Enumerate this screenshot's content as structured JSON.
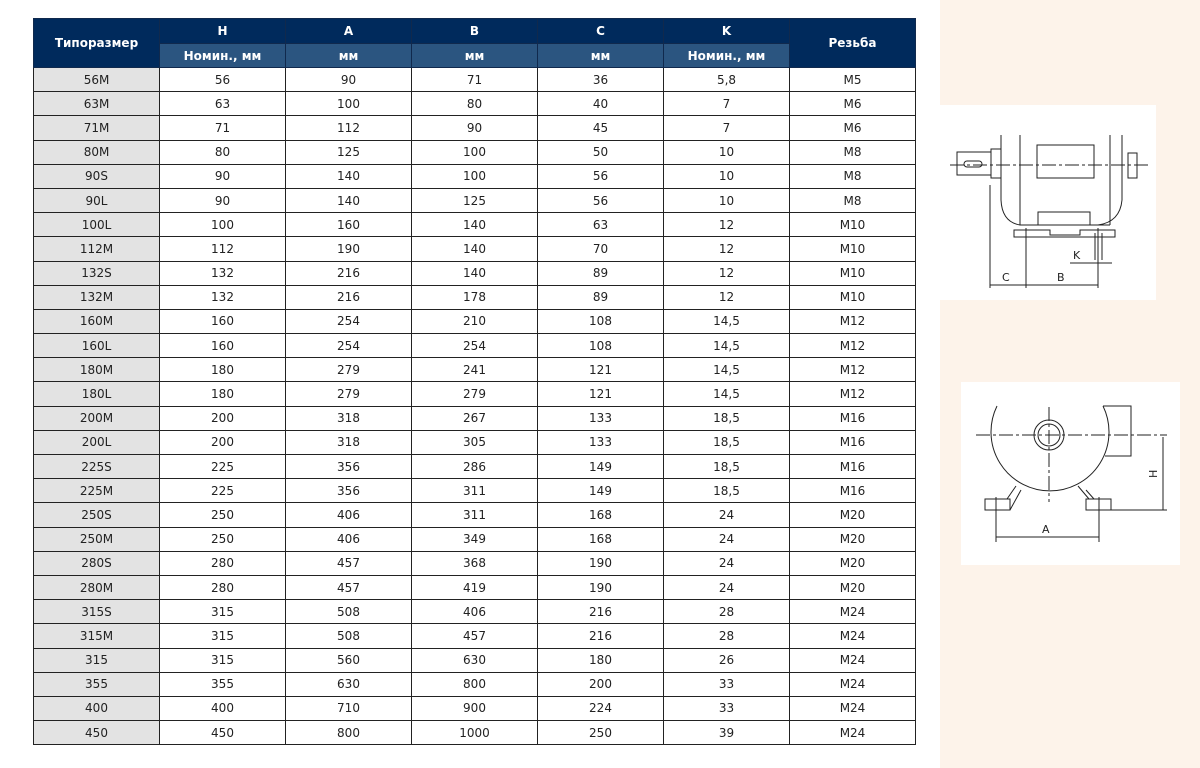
{
  "table": {
    "headers": {
      "size": "Типоразмер",
      "H": "H",
      "A": "A",
      "B": "B",
      "C": "C",
      "K": "K",
      "thread": "Резьба"
    },
    "subheaders": {
      "H": "Номин., мм",
      "A": "мм",
      "B": "мм",
      "C": "мм",
      "K": "Номин., мм"
    },
    "rows": [
      [
        "56M",
        "56",
        "90",
        "71",
        "36",
        "5,8",
        "M5"
      ],
      [
        "63M",
        "63",
        "100",
        "80",
        "40",
        "7",
        "M6"
      ],
      [
        "71M",
        "71",
        "112",
        "90",
        "45",
        "7",
        "M6"
      ],
      [
        "80M",
        "80",
        "125",
        "100",
        "50",
        "10",
        "M8"
      ],
      [
        "90S",
        "90",
        "140",
        "100",
        "56",
        "10",
        "M8"
      ],
      [
        "90L",
        "90",
        "140",
        "125",
        "56",
        "10",
        "M8"
      ],
      [
        "100L",
        "100",
        "160",
        "140",
        "63",
        "12",
        "M10"
      ],
      [
        "112M",
        "112",
        "190",
        "140",
        "70",
        "12",
        "M10"
      ],
      [
        "132S",
        "132",
        "216",
        "140",
        "89",
        "12",
        "M10"
      ],
      [
        "132M",
        "132",
        "216",
        "178",
        "89",
        "12",
        "M10"
      ],
      [
        "160M",
        "160",
        "254",
        "210",
        "108",
        "14,5",
        "M12"
      ],
      [
        "160L",
        "160",
        "254",
        "254",
        "108",
        "14,5",
        "M12"
      ],
      [
        "180M",
        "180",
        "279",
        "241",
        "121",
        "14,5",
        "M12"
      ],
      [
        "180L",
        "180",
        "279",
        "279",
        "121",
        "14,5",
        "M12"
      ],
      [
        "200M",
        "200",
        "318",
        "267",
        "133",
        "18,5",
        "M16"
      ],
      [
        "200L",
        "200",
        "318",
        "305",
        "133",
        "18,5",
        "M16"
      ],
      [
        "225S",
        "225",
        "356",
        "286",
        "149",
        "18,5",
        "M16"
      ],
      [
        "225M",
        "225",
        "356",
        "311",
        "149",
        "18,5",
        "M16"
      ],
      [
        "250S",
        "250",
        "406",
        "311",
        "168",
        "24",
        "M20"
      ],
      [
        "250M",
        "250",
        "406",
        "349",
        "168",
        "24",
        "M20"
      ],
      [
        "280S",
        "280",
        "457",
        "368",
        "190",
        "24",
        "M20"
      ],
      [
        "280M",
        "280",
        "457",
        "419",
        "190",
        "24",
        "M20"
      ],
      [
        "315S",
        "315",
        "508",
        "406",
        "216",
        "28",
        "M24"
      ],
      [
        "315M",
        "315",
        "508",
        "457",
        "216",
        "28",
        "M24"
      ],
      [
        "315",
        "315",
        "560",
        "630",
        "180",
        "26",
        "M24"
      ],
      [
        "355",
        "355",
        "630",
        "800",
        "200",
        "33",
        "M24"
      ],
      [
        "400",
        "400",
        "710",
        "900",
        "224",
        "33",
        "M24"
      ],
      [
        "450",
        "450",
        "800",
        "1000",
        "250",
        "39",
        "M24"
      ]
    ]
  },
  "diagrams": {
    "side_view": {
      "labels": {
        "C": "C",
        "B": "B",
        "K": "K"
      }
    },
    "front_view": {
      "labels": {
        "A": "A",
        "H": "H"
      }
    }
  },
  "colors": {
    "header": "#002a5c",
    "subheader": "#2b5580",
    "first_col": "#e3e3e3",
    "side_panel": "#fdf3ea"
  }
}
